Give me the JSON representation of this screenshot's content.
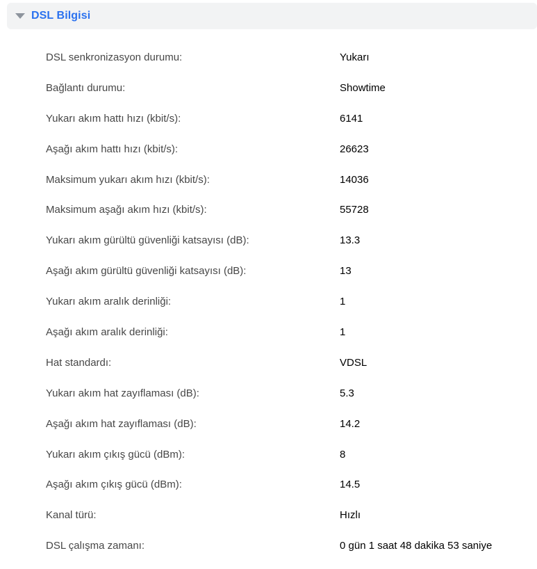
{
  "panel": {
    "title": "DSL Bilgisi",
    "collapse_icon": "triangle-down",
    "title_color": "#2b72ef",
    "header_bg": "#f2f3f4"
  },
  "rows": [
    {
      "label": "DSL senkronizasyon durumu:",
      "value": "Yukarı"
    },
    {
      "label": "Bağlantı durumu:",
      "value": "Showtime"
    },
    {
      "label": "Yukarı akım hattı hızı (kbit/s):",
      "value": "6141"
    },
    {
      "label": "Aşağı akım hattı hızı (kbit/s):",
      "value": "26623"
    },
    {
      "label": "Maksimum yukarı akım hızı (kbit/s):",
      "value": "14036"
    },
    {
      "label": "Maksimum aşağı akım hızı (kbit/s):",
      "value": "55728"
    },
    {
      "label": "Yukarı akım gürültü güvenliği katsayısı (dB):",
      "value": "13.3"
    },
    {
      "label": "Aşağı akım gürültü güvenliği katsayısı (dB):",
      "value": "13"
    },
    {
      "label": "Yukarı akım aralık derinliği:",
      "value": "1"
    },
    {
      "label": "Aşağı akım aralık derinliği:",
      "value": "1"
    },
    {
      "label": "Hat standardı:",
      "value": "VDSL"
    },
    {
      "label": "Yukarı akım hat zayıflaması (dB):",
      "value": "5.3"
    },
    {
      "label": "Aşağı akım hat zayıflaması (dB):",
      "value": "14.2"
    },
    {
      "label": "Yukarı akım çıkış gücü (dBm):",
      "value": "8"
    },
    {
      "label": "Aşağı akım çıkış gücü (dBm):",
      "value": "14.5"
    },
    {
      "label": "Kanal türü:",
      "value": "Hızlı"
    },
    {
      "label": "DSL çalışma zamanı:",
      "value": "0 gün 1 saat 48 dakika 53 saniye"
    }
  ]
}
